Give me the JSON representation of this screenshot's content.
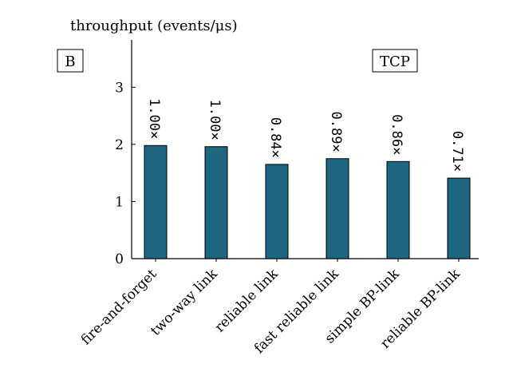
{
  "chart_data": {
    "type": "bar",
    "ylabel": "throughput (events/μs)",
    "panel_label": "B",
    "protocol_label": "TCP",
    "categories": [
      "fire-and-forget",
      "two-way link",
      "reliable link",
      "fast reliable link",
      "simple BP-link",
      "reliable BP-link"
    ],
    "values": [
      1.98,
      1.96,
      1.65,
      1.75,
      1.7,
      1.41
    ],
    "bar_labels": [
      "1.00×",
      "1.00×",
      "0.84×",
      "0.89×",
      "0.86×",
      "0.71×"
    ],
    "ylim": [
      0,
      3.8
    ],
    "yticks": [
      0,
      1,
      2,
      3
    ],
    "grid": false,
    "bar_color": "#1d6680"
  }
}
